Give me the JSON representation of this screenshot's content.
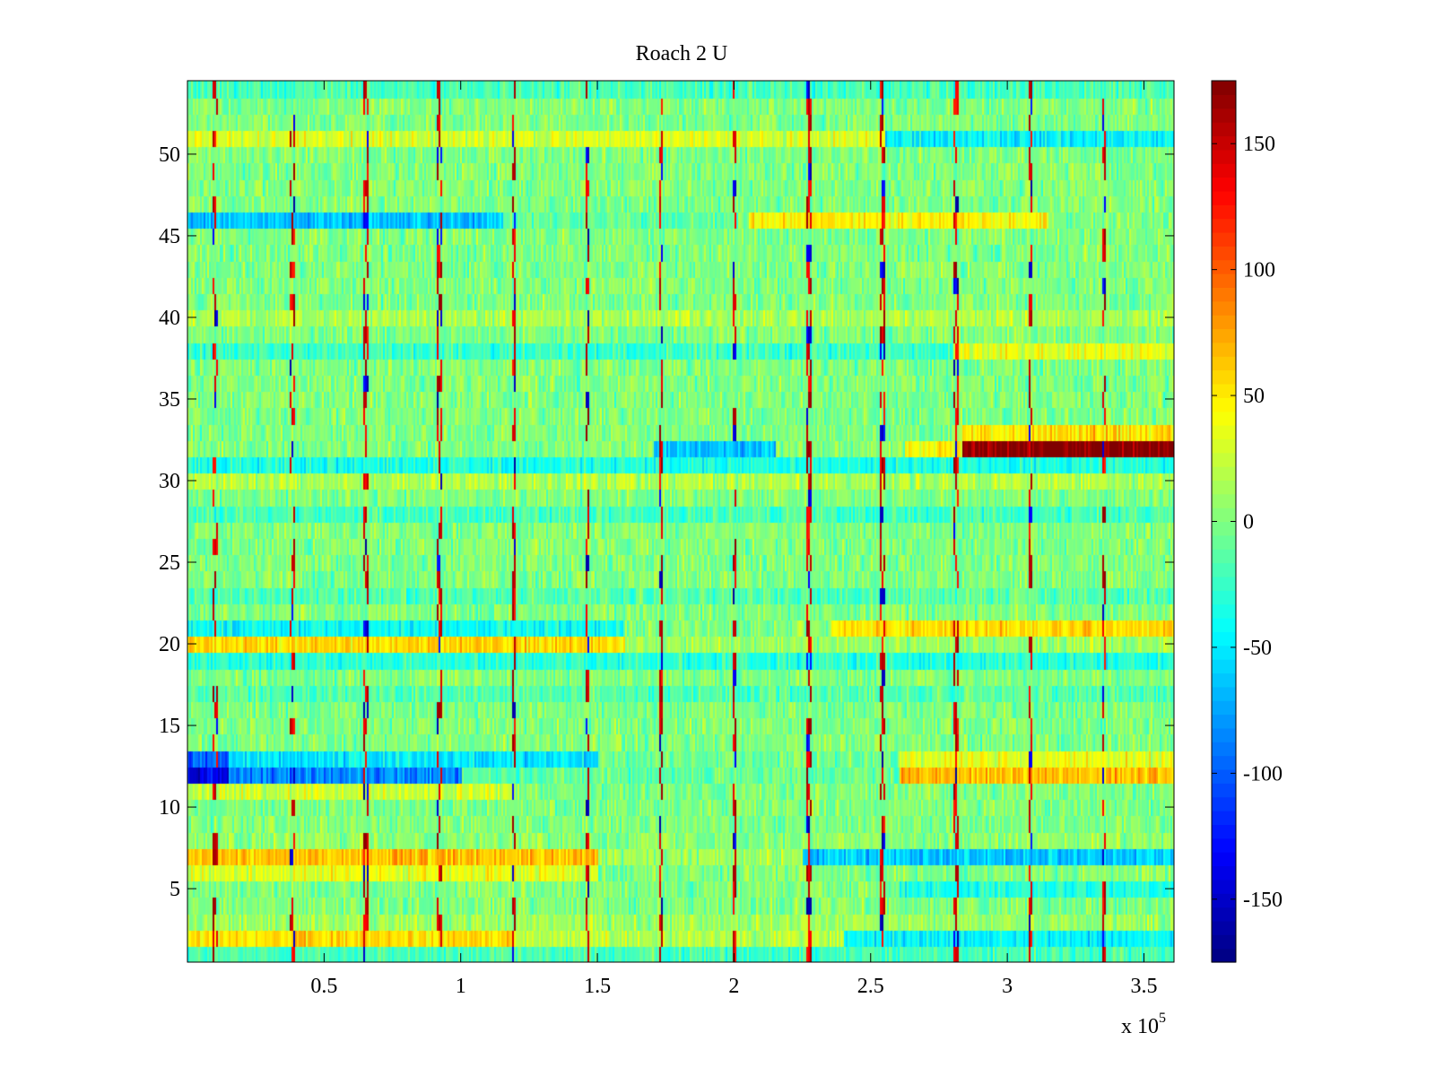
{
  "chart_data": {
    "type": "heatmap",
    "title": "Roach 2 U",
    "colormap": "jet",
    "x_axis": {
      "range": [
        0,
        361000
      ],
      "ticks": [
        50000,
        100000,
        150000,
        200000,
        250000,
        300000,
        350000
      ],
      "tick_labels": [
        "0.5",
        "1",
        "1.5",
        "2",
        "2.5",
        "3",
        "3.5"
      ],
      "multiplier_label": "x 10",
      "multiplier_exponent": "5"
    },
    "y_axis": {
      "range": [
        0.5,
        54.5
      ],
      "ticks": [
        5,
        10,
        15,
        20,
        25,
        30,
        35,
        40,
        45,
        50
      ],
      "tick_labels": [
        "5",
        "10",
        "15",
        "20",
        "25",
        "30",
        "35",
        "40",
        "45",
        "50"
      ]
    },
    "colorbar": {
      "range": [
        -175,
        175
      ],
      "ticks": [
        150,
        100,
        50,
        0,
        -50,
        -100,
        -150
      ],
      "tick_labels": [
        "150",
        "100",
        "50",
        "0",
        "-50",
        "-100",
        "-150"
      ]
    },
    "rows": 54,
    "baseline_mean": 0,
    "noise_amplitude": 20,
    "row_features": [
      {
        "row": 1,
        "segments": [
          {
            "x0": 0,
            "x1": 361000,
            "mean": -20
          }
        ]
      },
      {
        "row": 2,
        "segments": [
          {
            "x0": 0,
            "x1": 120000,
            "mean": 55
          },
          {
            "x0": 120000,
            "x1": 240000,
            "mean": 20
          },
          {
            "x0": 240000,
            "x1": 361000,
            "mean": -45
          }
        ]
      },
      {
        "row": 3,
        "segments": [
          {
            "x0": 0,
            "x1": 361000,
            "mean": 10
          }
        ]
      },
      {
        "row": 5,
        "segments": [
          {
            "x0": 260000,
            "x1": 361000,
            "mean": -35
          }
        ]
      },
      {
        "row": 6,
        "segments": [
          {
            "x0": 0,
            "x1": 150000,
            "mean": 35
          },
          {
            "x0": 150000,
            "x1": 361000,
            "mean": 0
          }
        ]
      },
      {
        "row": 7,
        "segments": [
          {
            "x0": 0,
            "x1": 150000,
            "mean": 65
          },
          {
            "x0": 150000,
            "x1": 225000,
            "mean": 10
          },
          {
            "x0": 225000,
            "x1": 361000,
            "mean": -60
          }
        ]
      },
      {
        "row": 8,
        "segments": [
          {
            "x0": 0,
            "x1": 361000,
            "mean": 5
          }
        ]
      },
      {
        "row": 11,
        "segments": [
          {
            "x0": 0,
            "x1": 120000,
            "mean": 25
          }
        ]
      },
      {
        "row": 12,
        "segments": [
          {
            "x0": 0,
            "x1": 15000,
            "mean": -140
          },
          {
            "x0": 15000,
            "x1": 100000,
            "mean": -85
          },
          {
            "x0": 100000,
            "x1": 260000,
            "mean": -10
          },
          {
            "x0": 260000,
            "x1": 361000,
            "mean": 65
          }
        ]
      },
      {
        "row": 13,
        "segments": [
          {
            "x0": 0,
            "x1": 15000,
            "mean": -100
          },
          {
            "x0": 15000,
            "x1": 150000,
            "mean": -50
          },
          {
            "x0": 150000,
            "x1": 260000,
            "mean": -5
          },
          {
            "x0": 260000,
            "x1": 361000,
            "mean": 35
          }
        ]
      },
      {
        "row": 17,
        "segments": [
          {
            "x0": 0,
            "x1": 361000,
            "mean": -15
          }
        ]
      },
      {
        "row": 19,
        "segments": [
          {
            "x0": 0,
            "x1": 361000,
            "mean": -30
          }
        ]
      },
      {
        "row": 20,
        "segments": [
          {
            "x0": 0,
            "x1": 160000,
            "mean": 55
          },
          {
            "x0": 160000,
            "x1": 361000,
            "mean": 10
          }
        ]
      },
      {
        "row": 21,
        "segments": [
          {
            "x0": 0,
            "x1": 160000,
            "mean": -40
          },
          {
            "x0": 160000,
            "x1": 235000,
            "mean": 0
          },
          {
            "x0": 235000,
            "x1": 361000,
            "mean": 55
          }
        ]
      },
      {
        "row": 23,
        "segments": [
          {
            "x0": 0,
            "x1": 361000,
            "mean": -15
          }
        ]
      },
      {
        "row": 28,
        "segments": [
          {
            "x0": 0,
            "x1": 361000,
            "mean": -20
          }
        ]
      },
      {
        "row": 30,
        "segments": [
          {
            "x0": 0,
            "x1": 361000,
            "mean": 15
          }
        ]
      },
      {
        "row": 31,
        "segments": [
          {
            "x0": 0,
            "x1": 361000,
            "mean": -35
          }
        ]
      },
      {
        "row": 32,
        "segments": [
          {
            "x0": 0,
            "x1": 170000,
            "mean": 0
          },
          {
            "x0": 170000,
            "x1": 215000,
            "mean": -65
          },
          {
            "x0": 215000,
            "x1": 262000,
            "mean": 0
          },
          {
            "x0": 262000,
            "x1": 283000,
            "mean": 45
          },
          {
            "x0": 283000,
            "x1": 361000,
            "mean": 172
          }
        ]
      },
      {
        "row": 33,
        "segments": [
          {
            "x0": 0,
            "x1": 283000,
            "mean": 0
          },
          {
            "x0": 283000,
            "x1": 361000,
            "mean": 55
          }
        ]
      },
      {
        "row": 38,
        "segments": [
          {
            "x0": 0,
            "x1": 280000,
            "mean": -25
          },
          {
            "x0": 280000,
            "x1": 361000,
            "mean": 35
          }
        ]
      },
      {
        "row": 40,
        "segments": [
          {
            "x0": 0,
            "x1": 361000,
            "mean": 15
          }
        ]
      },
      {
        "row": 46,
        "segments": [
          {
            "x0": 0,
            "x1": 115000,
            "mean": -65
          },
          {
            "x0": 115000,
            "x1": 205000,
            "mean": -10
          },
          {
            "x0": 205000,
            "x1": 315000,
            "mean": 45
          }
        ]
      },
      {
        "row": 51,
        "segments": [
          {
            "x0": 0,
            "x1": 255000,
            "mean": 30
          },
          {
            "x0": 255000,
            "x1": 361000,
            "mean": -45
          }
        ]
      },
      {
        "row": 54,
        "segments": [
          {
            "x0": 0,
            "x1": 361000,
            "mean": -20
          }
        ]
      }
    ],
    "vertical_spikes": [
      {
        "x": 10000,
        "strength": 0.6
      },
      {
        "x": 38000,
        "strength": 0.8
      },
      {
        "x": 65000,
        "strength": 0.9
      },
      {
        "x": 92000,
        "strength": 0.8
      },
      {
        "x": 119000,
        "strength": 0.8
      },
      {
        "x": 146000,
        "strength": 0.9
      },
      {
        "x": 173000,
        "strength": 0.9
      },
      {
        "x": 200000,
        "strength": 0.8
      },
      {
        "x": 227000,
        "strength": 1.0
      },
      {
        "x": 254000,
        "strength": 1.0
      },
      {
        "x": 281000,
        "strength": 0.9
      },
      {
        "x": 308000,
        "strength": 0.8
      },
      {
        "x": 335000,
        "strength": 0.8
      }
    ]
  }
}
